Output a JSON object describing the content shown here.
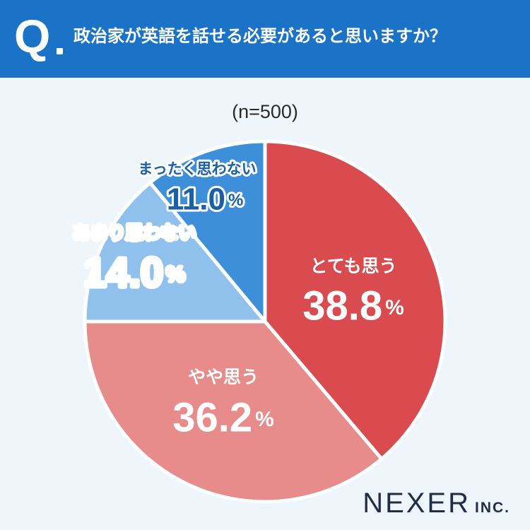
{
  "header": {
    "q_letter": "Q",
    "question": "政治家が英語を話せる必要があると思いますか？"
  },
  "sample_size": "(n=500)",
  "brand": {
    "name": "NEXER",
    "suffix": "INC."
  },
  "chart_data": {
    "type": "pie",
    "title": "政治家が英語を話せる必要があると思いますか？",
    "subtitle": "(n=500)",
    "unit": "%",
    "slices": [
      {
        "label": "とても思う",
        "value": 38.8,
        "display": "38.8",
        "color": "#d94b4f",
        "text_color": "#ffffff"
      },
      {
        "label": "やや思う",
        "value": 36.2,
        "display": "36.2",
        "color": "#e88b8b",
        "text_color": "#ffffff"
      },
      {
        "label": "あまり思わない",
        "value": 14.0,
        "display": "14.0",
        "color": "#8fc1ec",
        "text_color": "#ffffff"
      },
      {
        "label": "まったく思わない",
        "value": 11.0,
        "display": "11.0",
        "color": "#3d8fda",
        "text_color": "#1b5fa6"
      }
    ]
  }
}
